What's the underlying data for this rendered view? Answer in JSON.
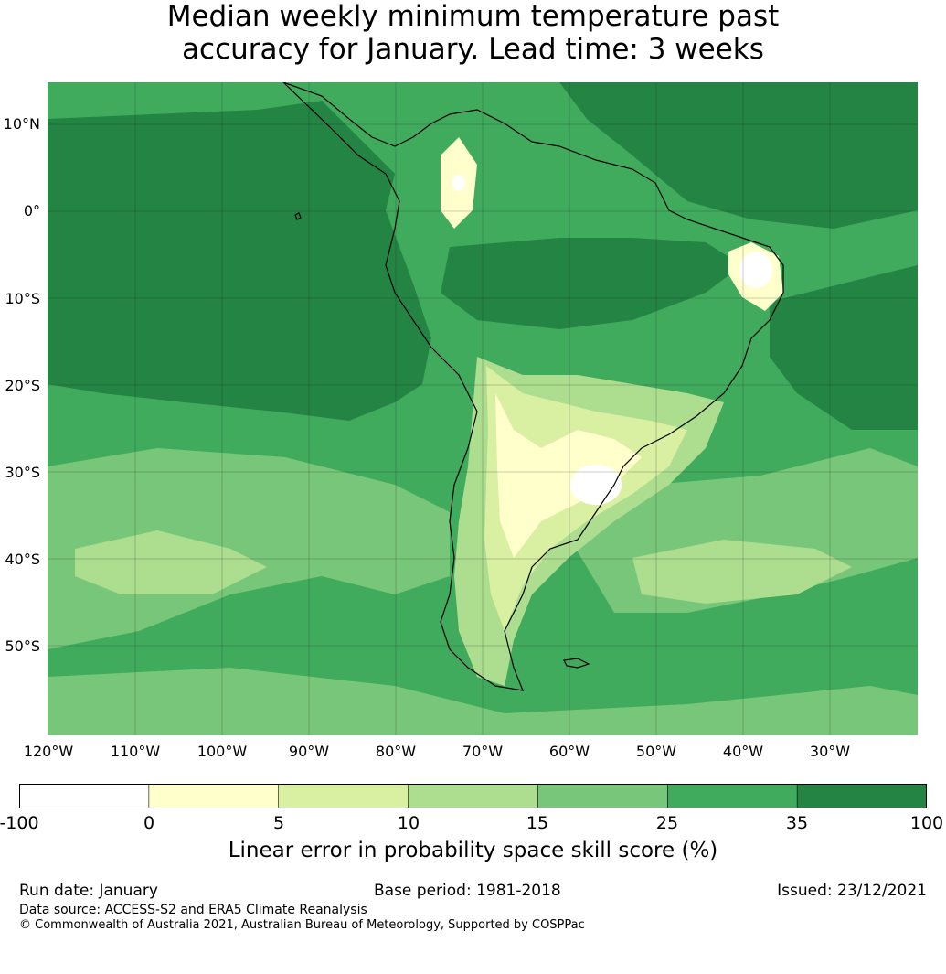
{
  "title": {
    "line1": "Median weekly minimum temperature past",
    "line2": "accuracy for January. Lead time: 3 weeks"
  },
  "map": {
    "lat_ticks": [
      "10°N",
      "0°",
      "10°S",
      "20°S",
      "30°S",
      "40°S",
      "50°S"
    ],
    "lon_ticks": [
      "120°W",
      "110°W",
      "100°W",
      "90°W",
      "80°W",
      "70°W",
      "60°W",
      "50°W",
      "40°W",
      "30°W"
    ]
  },
  "colorbar": {
    "boundaries": [
      "-100",
      "0",
      "5",
      "10",
      "15",
      "25",
      "35",
      "100"
    ],
    "colors": [
      "#ffffff",
      "#ffffcc",
      "#d9f0a3",
      "#addd8e",
      "#78c679",
      "#41ab5d",
      "#238443"
    ],
    "label": "Linear error in probability space skill score (%)"
  },
  "footer": {
    "run_date": "Run date: January",
    "base_period": "Base period: 1981-2018",
    "issued": "Issued: 23/12/2021",
    "data_source": "Data source: ACCESS-S2 and ERA5 Climate Reanalysis",
    "copyright": "© Commonwealth of Australia 2021, Australian Bureau of Meteorology, Supported by COSPPac"
  }
}
